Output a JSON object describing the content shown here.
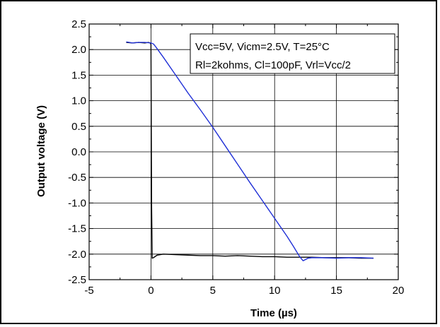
{
  "chart_data": {
    "type": "line",
    "xlabel": "Time (µs)",
    "ylabel": "Output voltage (V)",
    "xlim": [
      -5,
      20
    ],
    "ylim": [
      -2.5,
      2.5
    ],
    "xticks": [
      -5,
      0,
      5,
      10,
      15,
      20
    ],
    "xtick_labels": [
      "-5",
      "0",
      "5",
      "10",
      "15",
      "20"
    ],
    "yticks": [
      2.5,
      2.0,
      1.5,
      1.0,
      0.5,
      0.0,
      -0.5,
      -1.0,
      -1.5,
      -2.0,
      -2.5
    ],
    "ytick_labels": [
      "2.5",
      "2.0",
      "1.5",
      "1.0",
      "0.5",
      "0.0",
      "-0.5",
      "-1.0",
      "-1.5",
      "-2.0",
      "-2.5"
    ],
    "grid": true,
    "legend_placement": "top-right",
    "annotation_lines": [
      "Vcc=5V, Vicm=2.5V, T=25°C",
      "Rl=2kohms, Cl=100pF, Vrl=Vcc/2"
    ],
    "series": [
      {
        "color": "#000000",
        "x": [
          -2.0,
          -1.5,
          -1.0,
          -0.5,
          -0.2,
          -0.05,
          0.0,
          0.05,
          0.1,
          0.2,
          0.5,
          1.0,
          2.0,
          3.0,
          4.0,
          5.0,
          6.0,
          7.0,
          8.0,
          9.0,
          10.0,
          11.0,
          12.0,
          13.0,
          14.0,
          15.0,
          16.0,
          17.0,
          18.0
        ],
        "y": [
          2.14,
          2.13,
          2.14,
          2.13,
          2.14,
          2.13,
          2.1,
          -1.0,
          -2.08,
          -2.07,
          -2.02,
          -2.0,
          -2.01,
          -2.02,
          -2.03,
          -2.03,
          -2.04,
          -2.03,
          -2.04,
          -2.05,
          -2.05,
          -2.06,
          -2.06,
          -2.06,
          -2.07,
          -2.07,
          -2.07,
          -2.08,
          -2.08
        ]
      },
      {
        "color": "#1f2fd6",
        "x": [
          -2.0,
          -1.5,
          -1.0,
          -0.5,
          0.0,
          0.2,
          0.4,
          1.0,
          2.0,
          3.0,
          4.0,
          5.0,
          6.0,
          7.0,
          8.0,
          9.0,
          10.0,
          11.0,
          11.5,
          12.0,
          12.3,
          12.7,
          13.0,
          14.0,
          15.0,
          16.0,
          17.0,
          18.0
        ],
        "y": [
          2.15,
          2.13,
          2.14,
          2.14,
          2.13,
          2.11,
          2.05,
          1.85,
          1.5,
          1.15,
          0.82,
          0.48,
          0.12,
          -0.24,
          -0.6,
          -0.95,
          -1.3,
          -1.65,
          -1.84,
          -2.04,
          -2.13,
          -2.08,
          -2.07,
          -2.07,
          -2.08,
          -2.07,
          -2.07,
          -2.08
        ]
      }
    ]
  }
}
